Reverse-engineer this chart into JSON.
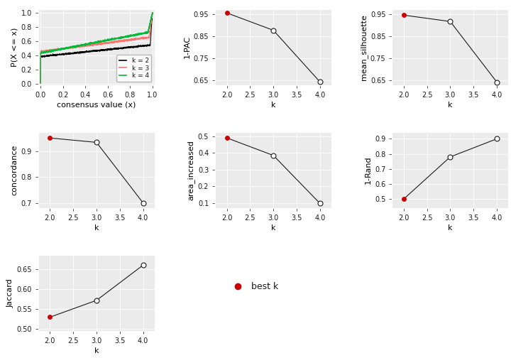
{
  "ecdf": {
    "k2": {
      "color": "#000000",
      "label": "k = 2"
    },
    "k3": {
      "color": "#f8766d",
      "label": "k = 3"
    },
    "k4": {
      "color": "#00ba38",
      "label": "k = 4"
    }
  },
  "pac": {
    "k": [
      2,
      3,
      4
    ],
    "values": [
      0.957,
      0.878,
      0.644
    ],
    "ylim": [
      0.63,
      0.975
    ],
    "yticks": [
      0.65,
      0.75,
      0.85,
      0.95
    ],
    "ylabel": "1-PAC",
    "best_k_idx": 0
  },
  "silhouette": {
    "k": [
      2,
      3,
      4
    ],
    "values": [
      0.947,
      0.918,
      0.643
    ],
    "ylim": [
      0.63,
      0.975
    ],
    "yticks": [
      0.65,
      0.75,
      0.85,
      0.95
    ],
    "ylabel": "mean_silhouette",
    "best_k_idx": 0
  },
  "concordance": {
    "k": [
      2,
      3,
      4
    ],
    "values": [
      0.952,
      0.935,
      0.7
    ],
    "ylim": [
      0.68,
      0.975
    ],
    "yticks": [
      0.7,
      0.8,
      0.9
    ],
    "ylabel": "concordance",
    "best_k_idx": 0
  },
  "area_increased": {
    "k": [
      2,
      3,
      4
    ],
    "values": [
      0.49,
      0.385,
      0.098
    ],
    "ylim": [
      0.07,
      0.525
    ],
    "yticks": [
      0.1,
      0.2,
      0.3,
      0.4,
      0.5
    ],
    "ylabel": "area_increased",
    "best_k_idx": 0
  },
  "rand": {
    "k": [
      2,
      3,
      4
    ],
    "values": [
      0.5,
      0.78,
      0.9
    ],
    "ylim": [
      0.44,
      0.945
    ],
    "yticks": [
      0.5,
      0.6,
      0.7,
      0.8,
      0.9
    ],
    "ylabel": "1-Rand",
    "best_k_idx": 0
  },
  "jaccard": {
    "k": [
      2,
      3,
      4
    ],
    "values": [
      0.53,
      0.572,
      0.66
    ],
    "ylim": [
      0.495,
      0.685
    ],
    "yticks": [
      0.5,
      0.55,
      0.6,
      0.65
    ],
    "ylabel": "Jaccard",
    "best_k_idx": 0
  },
  "best_k_color": "#cc0000",
  "open_circle_color": "#ffffff",
  "line_color": "#1a1a1a",
  "bg_color": "#ffffff",
  "panel_bg": "#ebebeb",
  "xlabel_k": "k",
  "xlabel_ecdf": "consensus value (x)",
  "ylabel_ecdf": "P(X <= x)"
}
